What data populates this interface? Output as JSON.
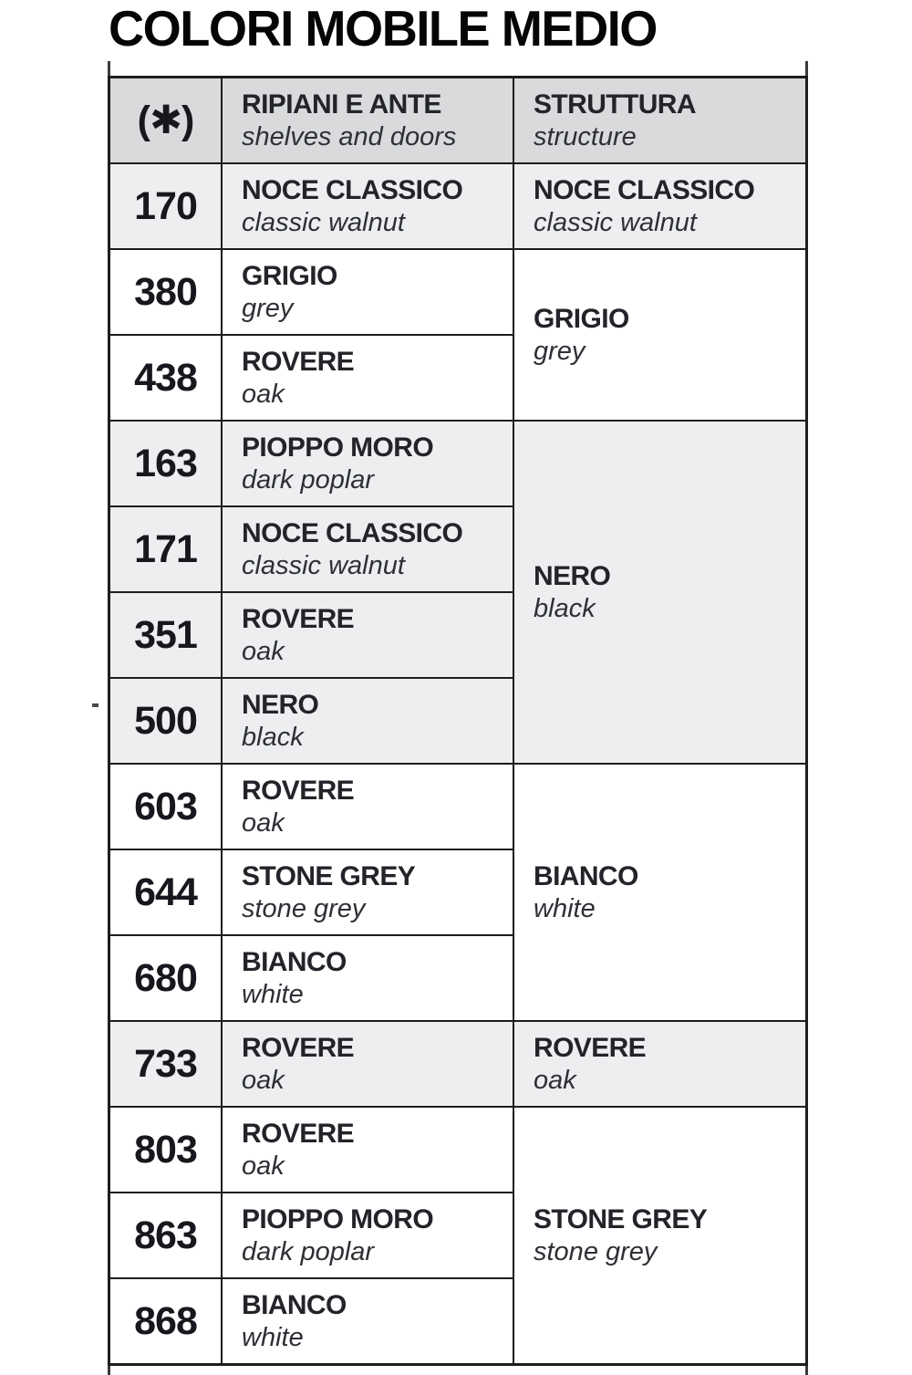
{
  "title": "COLORI MOBILE MEDIO",
  "palette": {
    "border": "#1d1d1b",
    "header_bg": "#d8dadc",
    "shaded_row_bg": "#edeeef",
    "plain_row_bg": "#ffffff",
    "text": "#232429"
  },
  "table": {
    "header": {
      "asterisk": "(✱)",
      "ripiani": {
        "it": "RIPIANI E ANTE",
        "en": "shelves and doors"
      },
      "struttura": {
        "it": "STRUTTURA",
        "en": "structure"
      }
    },
    "groups": [
      {
        "shaded": true,
        "structure": {
          "it": "NOCE CLASSICO",
          "en": "classic walnut"
        },
        "rows": [
          {
            "code": "170",
            "it": "NOCE CLASSICO",
            "en": "classic walnut"
          }
        ]
      },
      {
        "shaded": false,
        "structure": {
          "it": "GRIGIO",
          "en": "grey"
        },
        "rows": [
          {
            "code": "380",
            "it": "GRIGIO",
            "en": "grey"
          },
          {
            "code": "438",
            "it": "ROVERE",
            "en": "oak"
          }
        ]
      },
      {
        "shaded": true,
        "structure": {
          "it": "NERO",
          "en": "black"
        },
        "rows": [
          {
            "code": "163",
            "it": "PIOPPO MORO",
            "en": "dark poplar"
          },
          {
            "code": "171",
            "it": "NOCE CLASSICO",
            "en": "classic walnut"
          },
          {
            "code": "351",
            "it": "ROVERE",
            "en": "oak"
          },
          {
            "code": "500",
            "it": "NERO",
            "en": "black"
          }
        ]
      },
      {
        "shaded": false,
        "structure": {
          "it": "BIANCO",
          "en": "white"
        },
        "rows": [
          {
            "code": "603",
            "it": "ROVERE",
            "en": "oak"
          },
          {
            "code": "644",
            "it": "STONE GREY",
            "en": "stone grey"
          },
          {
            "code": "680",
            "it": "BIANCO",
            "en": "white"
          }
        ]
      },
      {
        "shaded": true,
        "structure": {
          "it": "ROVERE",
          "en": "oak"
        },
        "rows": [
          {
            "code": "733",
            "it": "ROVERE",
            "en": "oak"
          }
        ]
      },
      {
        "shaded": false,
        "structure": {
          "it": "STONE GREY",
          "en": "stone grey"
        },
        "rows": [
          {
            "code": "803",
            "it": "ROVERE",
            "en": "oak"
          },
          {
            "code": "863",
            "it": "PIOPPO MORO",
            "en": "dark poplar"
          },
          {
            "code": "868",
            "it": "BIANCO",
            "en": "white"
          }
        ]
      }
    ]
  }
}
